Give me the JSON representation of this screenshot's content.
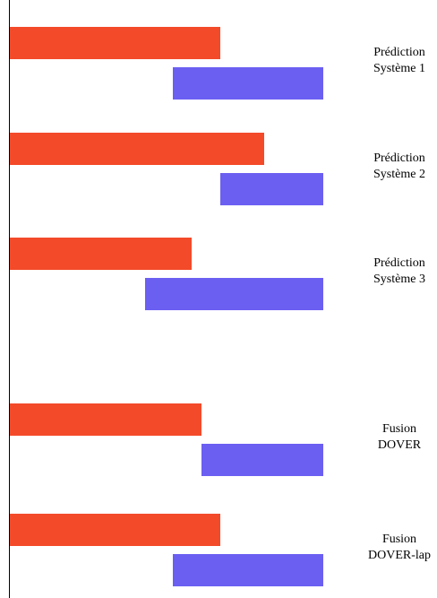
{
  "colors": {
    "reference": "#f34a2a",
    "hypothesis": "#6b5ff2",
    "axis": "#000000"
  },
  "rows": [
    {
      "label_line1": "Prédiction",
      "label_line2": "Système 1",
      "reference": [
        0.0,
        0.67
      ],
      "hypothesis": [
        0.52,
        1.0
      ]
    },
    {
      "label_line1": "Prédiction",
      "label_line2": "Système 2",
      "reference": [
        0.0,
        0.81
      ],
      "hypothesis": [
        0.67,
        1.0
      ]
    },
    {
      "label_line1": "Prédiction",
      "label_line2": "Système 3",
      "reference": [
        0.0,
        0.58
      ],
      "hypothesis": [
        0.43,
        1.0
      ]
    },
    {
      "label_line1": "Fusion",
      "label_line2": "DOVER",
      "reference": [
        0.0,
        0.61
      ],
      "hypothesis": [
        0.61,
        1.0
      ]
    },
    {
      "label_line1": "Fusion",
      "label_line2": "DOVER-lap",
      "reference": [
        0.0,
        0.67
      ],
      "hypothesis": [
        0.52,
        1.0
      ]
    }
  ]
}
